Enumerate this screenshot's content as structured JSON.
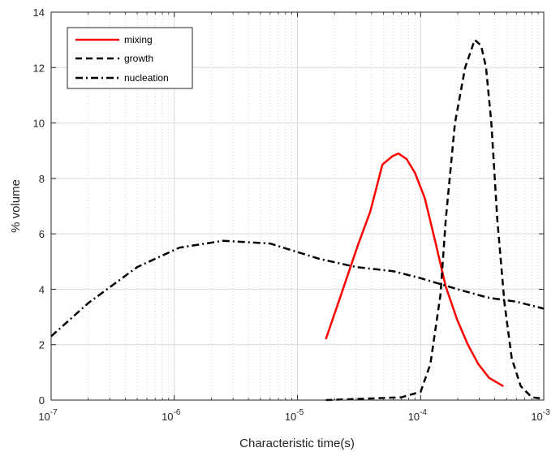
{
  "chart_data": {
    "type": "line",
    "title": "",
    "xlabel": "Characteristic time(s)",
    "ylabel": "% volume",
    "xscale": "log",
    "xlim": [
      1e-07,
      0.001
    ],
    "ylim": [
      0,
      14
    ],
    "x_ticks": [
      {
        "value": 1e-07,
        "base": "10",
        "exp": "-7"
      },
      {
        "value": 1e-06,
        "base": "10",
        "exp": "-6"
      },
      {
        "value": 1e-05,
        "base": "10",
        "exp": "-5"
      },
      {
        "value": 0.0001,
        "base": "10",
        "exp": "-4"
      },
      {
        "value": 0.001,
        "base": "10",
        "exp": "-3"
      }
    ],
    "y_ticks": [
      "0",
      "2",
      "4",
      "6",
      "8",
      "10",
      "12",
      "14"
    ],
    "grid": true,
    "legend_position": "top-left",
    "series": [
      {
        "name": "mixing",
        "color": "#ff0000",
        "style": "solid",
        "x": [
          1.7e-05,
          2.3e-05,
          3.1e-05,
          3.9e-05,
          4.9e-05,
          5.9e-05,
          6.6e-05,
          7.7e-05,
          9e-05,
          0.000108,
          0.000132,
          0.00016,
          0.000198,
          0.000242,
          0.000294,
          0.00036,
          0.00047
        ],
        "y": [
          2.2,
          3.9,
          5.6,
          6.8,
          8.5,
          8.8,
          8.9,
          8.7,
          8.2,
          7.3,
          5.7,
          4.1,
          2.9,
          2.0,
          1.3,
          0.8,
          0.5
        ]
      },
      {
        "name": "growth",
        "color": "#000000",
        "style": "dashed",
        "x": [
          1.7e-05,
          3.5e-05,
          7e-05,
          0.0001,
          0.00012,
          0.000145,
          0.00016,
          0.00019,
          0.00023,
          0.000275,
          0.00031,
          0.00034,
          0.000375,
          0.00042,
          0.00048,
          0.00055,
          0.00065,
          0.0008,
          0.001
        ],
        "y": [
          0.0,
          0.05,
          0.1,
          0.3,
          1.3,
          3.8,
          6.5,
          10.0,
          12.0,
          13.0,
          12.8,
          12.0,
          10.0,
          6.5,
          3.5,
          1.5,
          0.5,
          0.1,
          0.05
        ]
      },
      {
        "name": "nucleation",
        "color": "#000000",
        "style": "dashdot",
        "x": [
          1e-07,
          2e-07,
          5e-07,
          1.1e-06,
          2.5e-06,
          6e-06,
          1.5e-05,
          3e-05,
          6e-05,
          0.0001,
          0.0002,
          0.00035,
          0.0006,
          0.001
        ],
        "y": [
          2.3,
          3.5,
          4.8,
          5.5,
          5.75,
          5.65,
          5.1,
          4.8,
          4.65,
          4.4,
          4.0,
          3.7,
          3.55,
          3.3
        ]
      }
    ]
  }
}
